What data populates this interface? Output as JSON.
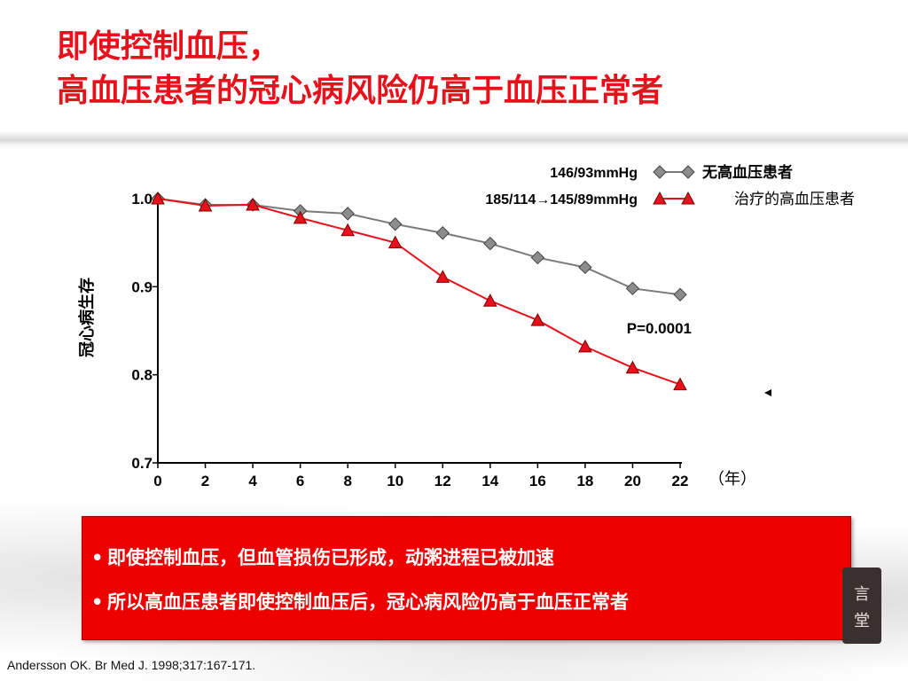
{
  "title": {
    "line1": "即使控制血压，",
    "line2": "高血压患者的冠心病风险仍高于血压正常者"
  },
  "chart_data": {
    "type": "line",
    "x": [
      0,
      2,
      4,
      6,
      8,
      10,
      12,
      14,
      16,
      18,
      20,
      22
    ],
    "xticks": [
      "0",
      "2",
      "4",
      "6",
      "8",
      "10",
      "12",
      "14",
      "16",
      "18",
      "20",
      "22"
    ],
    "yticks": [
      "0.7",
      "0.8",
      "0.9",
      "1.0"
    ],
    "ylim": [
      0.7,
      1.0
    ],
    "xlim": [
      0,
      22
    ],
    "ylabel": "冠心病生存",
    "xunit": "（年）",
    "series": [
      {
        "name": "无高血压患者",
        "bp_label": "146/93mmHg",
        "marker": "diamond",
        "color": "#7a7a7a",
        "fill": "#8c8c8c",
        "values": [
          1.0,
          0.993,
          0.993,
          0.986,
          0.983,
          0.971,
          0.961,
          0.949,
          0.933,
          0.922,
          0.898,
          0.891
        ]
      },
      {
        "name": "治疗的高血压患者",
        "bp_label": "185/114→145/89mmHg",
        "marker": "triangle",
        "color": "#e8101a",
        "fill": "#e8101a",
        "values": [
          1.0,
          0.992,
          0.993,
          0.978,
          0.964,
          0.95,
          0.911,
          0.884,
          0.862,
          0.832,
          0.808,
          0.789
        ]
      }
    ],
    "annotation": "P=0.0001",
    "legend_position": "top-right"
  },
  "bullets": [
    "即使控制血压，但血管损伤已形成，动粥进程已被加速",
    "所以高血压患者即使控制血压后，冠心病风险仍高于血压正常者"
  ],
  "bullet_symbol": "•",
  "citation": "Andersson OK. Br Med J. 1998;317:167-171.",
  "seal": {
    "chars": [
      "言",
      "堂"
    ]
  },
  "colors": {
    "title": "#e8101a",
    "box": "#ee0000",
    "axis": "#000000"
  }
}
